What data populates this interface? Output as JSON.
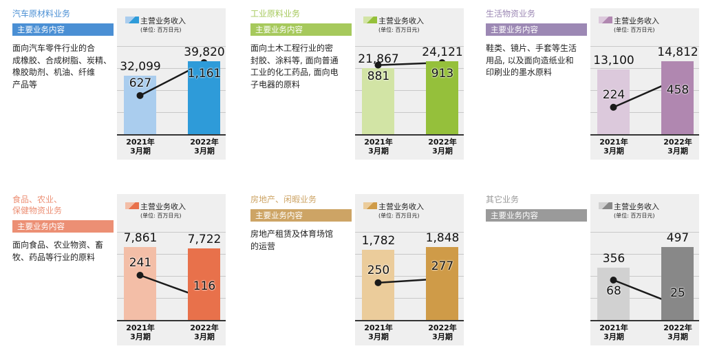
{
  "legend": {
    "label": "主营业务收入",
    "unit": "(单位: 百万日元)"
  },
  "header_label": "主要业务内容",
  "x_categories": [
    "2021年\n3月期",
    "2022年\n3月期"
  ],
  "segments": [
    {
      "title": "汽车原材料业务",
      "description": "面向汽车零件行业的合\n成橡胶、合成树脂、炭精、\n橡胶助剂、机油、纤维\n产品等",
      "accent": "#4a8fd4",
      "bar_colors": [
        "#aacdee",
        "#2e9bd9"
      ]
    },
    {
      "title": "工业原料业务",
      "description": "面向土木工程行业的密\n封胶、涂料等, 面向普通\n工业的化工药品, 面向电\n子电器的原料",
      "accent": "#a6c95c",
      "bar_colors": [
        "#d2e4a5",
        "#95c03b"
      ]
    },
    {
      "title": "生活物资业务",
      "description": "鞋类、镜片、手套等生活\n用品, 以及面向造纸业和\n印刷业的墨水原料",
      "accent": "#9c88b4",
      "bar_colors": [
        "#dcc9dc",
        "#b087b0"
      ]
    },
    {
      "title": "食品、农业、\n保健物资业务",
      "description": "面向食品、农业物资、畜\n牧、药品等行业的原料",
      "accent": "#ec8f74",
      "bar_colors": [
        "#f3bea7",
        "#e8714b"
      ]
    },
    {
      "title": "房地产、闲暇业务",
      "description": "房地产租赁及体育场馆\n的运营",
      "accent": "#cda465",
      "bar_colors": [
        "#ebcc9b",
        "#cf9b48"
      ]
    },
    {
      "title": "其它业务",
      "description": "",
      "accent": "#9a9a9a",
      "bar_colors": [
        "#d1d1d1",
        "#888888"
      ]
    }
  ],
  "chart_data": [
    {
      "type": "bar+line",
      "categories": [
        "2021年3月期",
        "2022年3月期"
      ],
      "bar_values": [
        32099,
        39820
      ],
      "line_values": [
        627,
        1161
      ],
      "legend": "主营业务收入",
      "unit": "百万日元"
    },
    {
      "type": "bar+line",
      "categories": [
        "2021年3月期",
        "2022年3月期"
      ],
      "bar_values": [
        21867,
        24121
      ],
      "line_values": [
        881,
        913
      ],
      "legend": "主营业务收入",
      "unit": "百万日元"
    },
    {
      "type": "bar+line",
      "categories": [
        "2021年3月期",
        "2022年3月期"
      ],
      "bar_values": [
        13100,
        14812
      ],
      "line_values": [
        224,
        458
      ],
      "legend": "主营业务收入",
      "unit": "百万日元"
    },
    {
      "type": "bar+line",
      "categories": [
        "2021年3月期",
        "2022年3月期"
      ],
      "bar_values": [
        7861,
        7722
      ],
      "line_values": [
        241,
        116
      ],
      "legend": "主营业务收入",
      "unit": "百万日元"
    },
    {
      "type": "bar+line",
      "categories": [
        "2021年3月期",
        "2022年3月期"
      ],
      "bar_values": [
        1782,
        1848
      ],
      "line_values": [
        250,
        277
      ],
      "legend": "主营业务收入",
      "unit": "百万日元"
    },
    {
      "type": "bar+line",
      "categories": [
        "2021年3月期",
        "2022年3月期"
      ],
      "bar_values": [
        356,
        497
      ],
      "line_values": [
        68,
        25
      ],
      "legend": "主营业务收入",
      "unit": "百万日元"
    }
  ]
}
